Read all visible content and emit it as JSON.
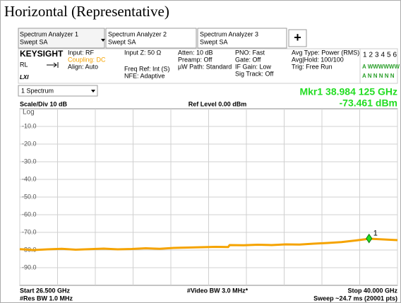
{
  "title": "Horizontal (Representative)",
  "tabs": [
    {
      "line1": "Spectrum Analyzer 1",
      "line2": "Swept SA"
    },
    {
      "line1": "Spectrum Analyzer 2",
      "line2": "Swept SA"
    },
    {
      "line1": "Spectrum Analyzer 3",
      "line2": "Swept SA"
    }
  ],
  "add_tab": "+",
  "info": {
    "brand": "KEYSIGHT",
    "rl": "RL",
    "lxi": "LXI",
    "col1": [
      "Input: RF",
      "Coupling: DC",
      "Align: Auto"
    ],
    "col2": [
      "Input Z: 50 Ω",
      "Freq Ref: Int (S)",
      "NFE: Adaptive"
    ],
    "col3": [
      "Atten: 10 dB",
      "Preamp: Off",
      "µW Path: Standard"
    ],
    "col4": [
      "PNO: Fast",
      "Gate: Off",
      "IF Gain: Low",
      "Sig Track: Off"
    ],
    "col5": [
      "Avg Type: Power (RMS)",
      "Avg|Hold: 100/100",
      "Trig: Free Run"
    ],
    "traces": [
      "1",
      "2",
      "3",
      "4",
      "5",
      "6"
    ],
    "trace_row1": "A WWWWWW",
    "trace_row2": "A N N N N N"
  },
  "window_select": "1 Spectrum",
  "chart_data": {
    "type": "line",
    "scale_label": "Scale/Div 10 dB",
    "ref_level": "Ref Level 0.00 dBm",
    "scale_type": "Log",
    "xlim": [
      26.5,
      40
    ],
    "ylim": [
      -100,
      0
    ],
    "xticks": [
      26.5,
      27.85,
      29.2,
      30.55,
      31.9,
      33.25,
      34.6,
      35.95,
      37.3,
      38.65,
      40
    ],
    "yticks": [
      {
        "value": -10,
        "label": "-10.0"
      },
      {
        "value": -20,
        "label": "-20.0"
      },
      {
        "value": -30,
        "label": "-30.0"
      },
      {
        "value": -40,
        "label": "-40.0"
      },
      {
        "value": -50,
        "label": "-50.0"
      },
      {
        "value": -60,
        "label": "-60.0"
      },
      {
        "value": -70,
        "label": "-70.0"
      },
      {
        "value": -80,
        "label": "-80.0"
      },
      {
        "value": -90,
        "label": "-90.0"
      }
    ],
    "grid": true,
    "series": [
      {
        "name": "Trace 1",
        "color": "#f5a300",
        "x": [
          26.5,
          27.0,
          27.5,
          28.0,
          28.5,
          29.0,
          29.5,
          30.0,
          30.5,
          31.0,
          31.5,
          32.0,
          32.5,
          33.0,
          33.5,
          33.95,
          34.0,
          34.5,
          35.0,
          35.5,
          36.0,
          36.5,
          37.0,
          37.5,
          38.0,
          38.5,
          39.0,
          39.5,
          40.0
        ],
        "values": [
          -79.5,
          -80.0,
          -79.6,
          -79.3,
          -79.8,
          -79.5,
          -79.2,
          -79.6,
          -79.4,
          -79.0,
          -79.3,
          -78.8,
          -78.6,
          -78.4,
          -78.2,
          -78.3,
          -77.2,
          -77.3,
          -77.0,
          -77.2,
          -76.8,
          -76.9,
          -76.4,
          -76.0,
          -75.5,
          -74.6,
          -73.6,
          -74.0,
          -74.4
        ]
      }
    ],
    "marker": {
      "label": "1",
      "x": 38.984125,
      "y": -73.461,
      "freq_text": "Mkr1 38.984 125 GHz",
      "amp_text": "-73.461 dBm"
    },
    "start": "Start 26.500 GHz",
    "res_bw": "#Res BW 1.0 MHz",
    "video_bw": "#Video BW 3.0 MHz*",
    "stop": "Stop 40.000 GHz",
    "sweep": "Sweep ~24.7 ms (20001 pts)"
  }
}
